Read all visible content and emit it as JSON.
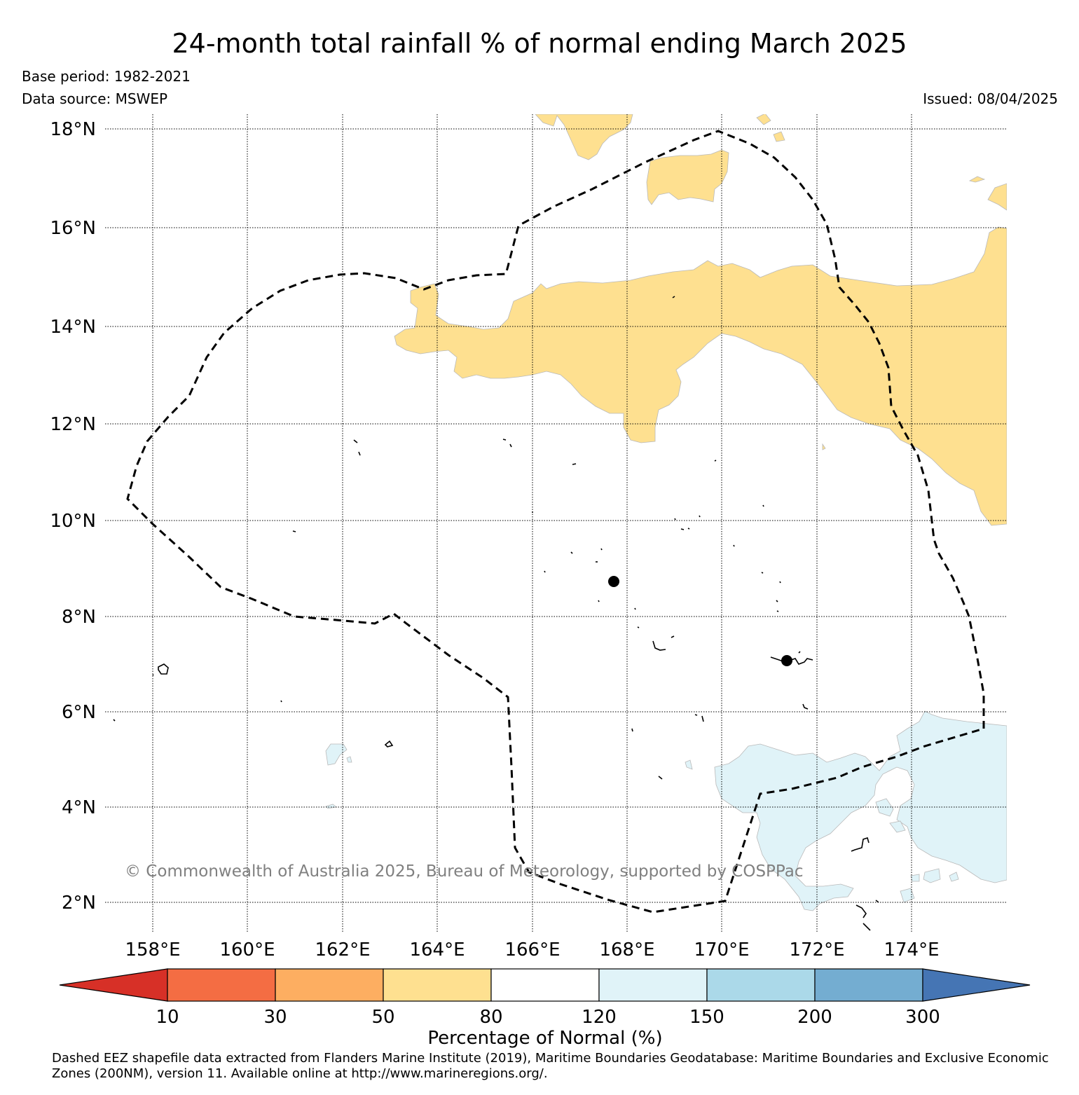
{
  "title": "24-month total rainfall % of normal ending March 2025",
  "base_period": "Base period: 1982-2021",
  "data_source": "Data source: MSWEP",
  "issued": "Issued: 08/04/2025",
  "copyright": "© Commonwealth of Australia 2025, Bureau of Meteorology, supported by COSPPac",
  "lat_labels": [
    "18°N",
    "16°N",
    "14°N",
    "12°N",
    "10°N",
    "8°N",
    "6°N",
    "4°N",
    "2°N"
  ],
  "lon_labels": [
    "158°E",
    "160°E",
    "162°E",
    "164°E",
    "166°E",
    "168°E",
    "170°E",
    "172°E",
    "174°E"
  ],
  "colorbar": {
    "label": "Percentage of Normal (%)",
    "ticks": [
      "10",
      "30",
      "50",
      "80",
      "120",
      "150",
      "200",
      "300"
    ],
    "colors": [
      "#d73027",
      "#f46d43",
      "#fdae61",
      "#fee090",
      "#ffffff",
      "#e0f3f8",
      "#abd9e9",
      "#74add1",
      "#4575b4"
    ]
  },
  "footnote": "Dashed EEZ shapefile data extracted from Flanders Marine Institute (2019), Maritime Boundaries Geodatabase: Maritime Boundaries and Exclusive Economic Zones (200NM), version 11. Available online at http://www.marineregions.org/.",
  "colors": {
    "dry": "#fee090",
    "wet": "#e0f3f8"
  }
}
